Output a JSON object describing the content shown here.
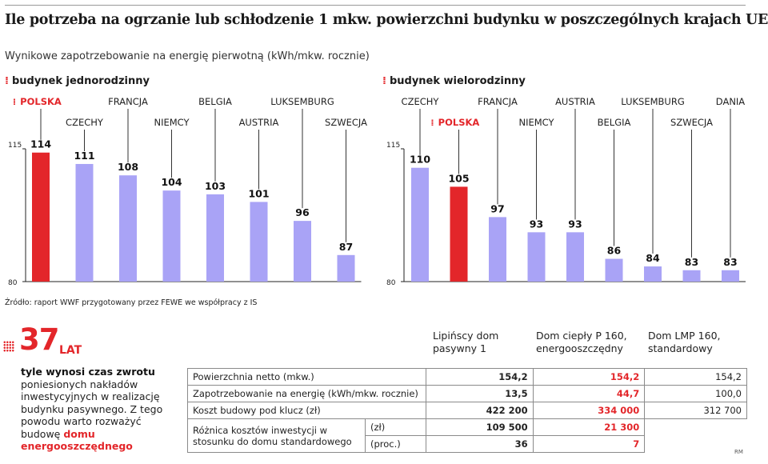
{
  "title": "Ile potrzeba na ogrzanie lub schłodzenie 1 mkw. powierzchni budynku w poszczególnych krajach UE",
  "subtitle": "Wynikowe zapotrzebowanie na energię pierwotną (kWh/mkw. rocznie)",
  "source": "Źródło: raport WWF przygotowany przez FEWE we współpracy z IS",
  "marker_glyph": "⁞",
  "colors": {
    "highlight": "#e3262a",
    "bar": "#a9a3f6",
    "axis": "#222222"
  },
  "chart_data": [
    {
      "type": "bar",
      "title": "budynek jednorodzinny",
      "categories": [
        "POLSKA",
        "CZECHY",
        "FRANCJA",
        "NIEMCY",
        "BELGIA",
        "AUSTRIA",
        "LUKSEMBURG",
        "SZWECJA"
      ],
      "values": [
        114,
        111,
        108,
        104,
        103,
        101,
        96,
        87
      ],
      "highlight": [
        "POLSKA"
      ],
      "yticks": [
        "115",
        "80"
      ],
      "ylim": [
        80,
        115
      ]
    },
    {
      "type": "bar",
      "title": "budynek wielorodzinny",
      "categories": [
        "CZECHY",
        "POLSKA",
        "FRANCJA",
        "NIEMCY",
        "AUSTRIA",
        "BELGIA",
        "LUKSEMBURG",
        "SZWECJA",
        "DANIA"
      ],
      "values": [
        110,
        105,
        97,
        93,
        93,
        86,
        84,
        83,
        83
      ],
      "highlight": [
        "POLSKA"
      ],
      "yticks": [
        "115",
        "80"
      ],
      "ylim": [
        80,
        115
      ]
    }
  ],
  "payback": {
    "number": "37",
    "unit": "LAT",
    "bold_text": "tyle wynosi czas zwrotu",
    "text": "poniesionych nakładów inwestycyjnych w realizację budynku pasywnego. Z tego powodu warto rozważyć budowę",
    "highlight_text": "domu energooszczędnego"
  },
  "comparison": {
    "columns": [
      "Lipińscy dom pasywny 1",
      "Dom ciepły P 160, energooszczędny",
      "Dom  LMP 160, standardowy"
    ],
    "rows": [
      {
        "label": "Powierzchnia netto (mkw.)",
        "values": [
          "154,2",
          "154,2",
          "154,2"
        ]
      },
      {
        "label": "Zapotrzebowanie na energię (kWh/mkw. rocznie)",
        "values": [
          "13,5",
          "44,7",
          "100,0"
        ]
      },
      {
        "label": "Koszt budowy pod klucz (zł)",
        "values": [
          "422 200",
          "334 000",
          "312 700"
        ]
      }
    ],
    "diff_label": "Różnica kosztów inwestycji w stosunku do domu standardowego",
    "diff_rows": [
      {
        "unit": "(zł)",
        "values": [
          "109 500",
          "21 300"
        ]
      },
      {
        "unit": "(proc.)",
        "values": [
          "36",
          "7"
        ]
      }
    ],
    "credit": "RM"
  }
}
